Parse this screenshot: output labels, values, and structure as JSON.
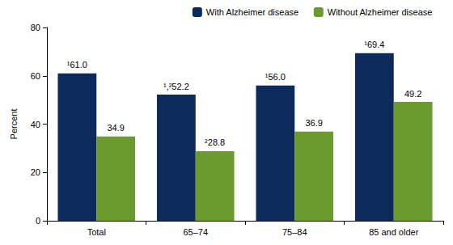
{
  "chart_data": {
    "type": "bar",
    "y_label": "Percent",
    "categories": [
      "Total",
      "65–74",
      "75–84",
      "85 and older"
    ],
    "series": [
      {
        "name": "With Alzheimer disease",
        "color": "#0d2a5c",
        "values": [
          61.0,
          52.2,
          56.0,
          69.4
        ],
        "value_labels": [
          "¹61.0",
          "¹,²52.2",
          "¹56.0",
          "¹69.4"
        ]
      },
      {
        "name": "Without Alzheimer disease",
        "color": "#6b9a2f",
        "values": [
          34.9,
          28.8,
          36.9,
          49.2
        ],
        "value_labels": [
          "34.9",
          "²28.8",
          "36.9",
          "49.2"
        ]
      }
    ],
    "ylim": [
      0,
      80
    ],
    "yticks": [
      0,
      20,
      40,
      60,
      80
    ],
    "grid": false,
    "legend": "top-right",
    "data_labels": true
  }
}
